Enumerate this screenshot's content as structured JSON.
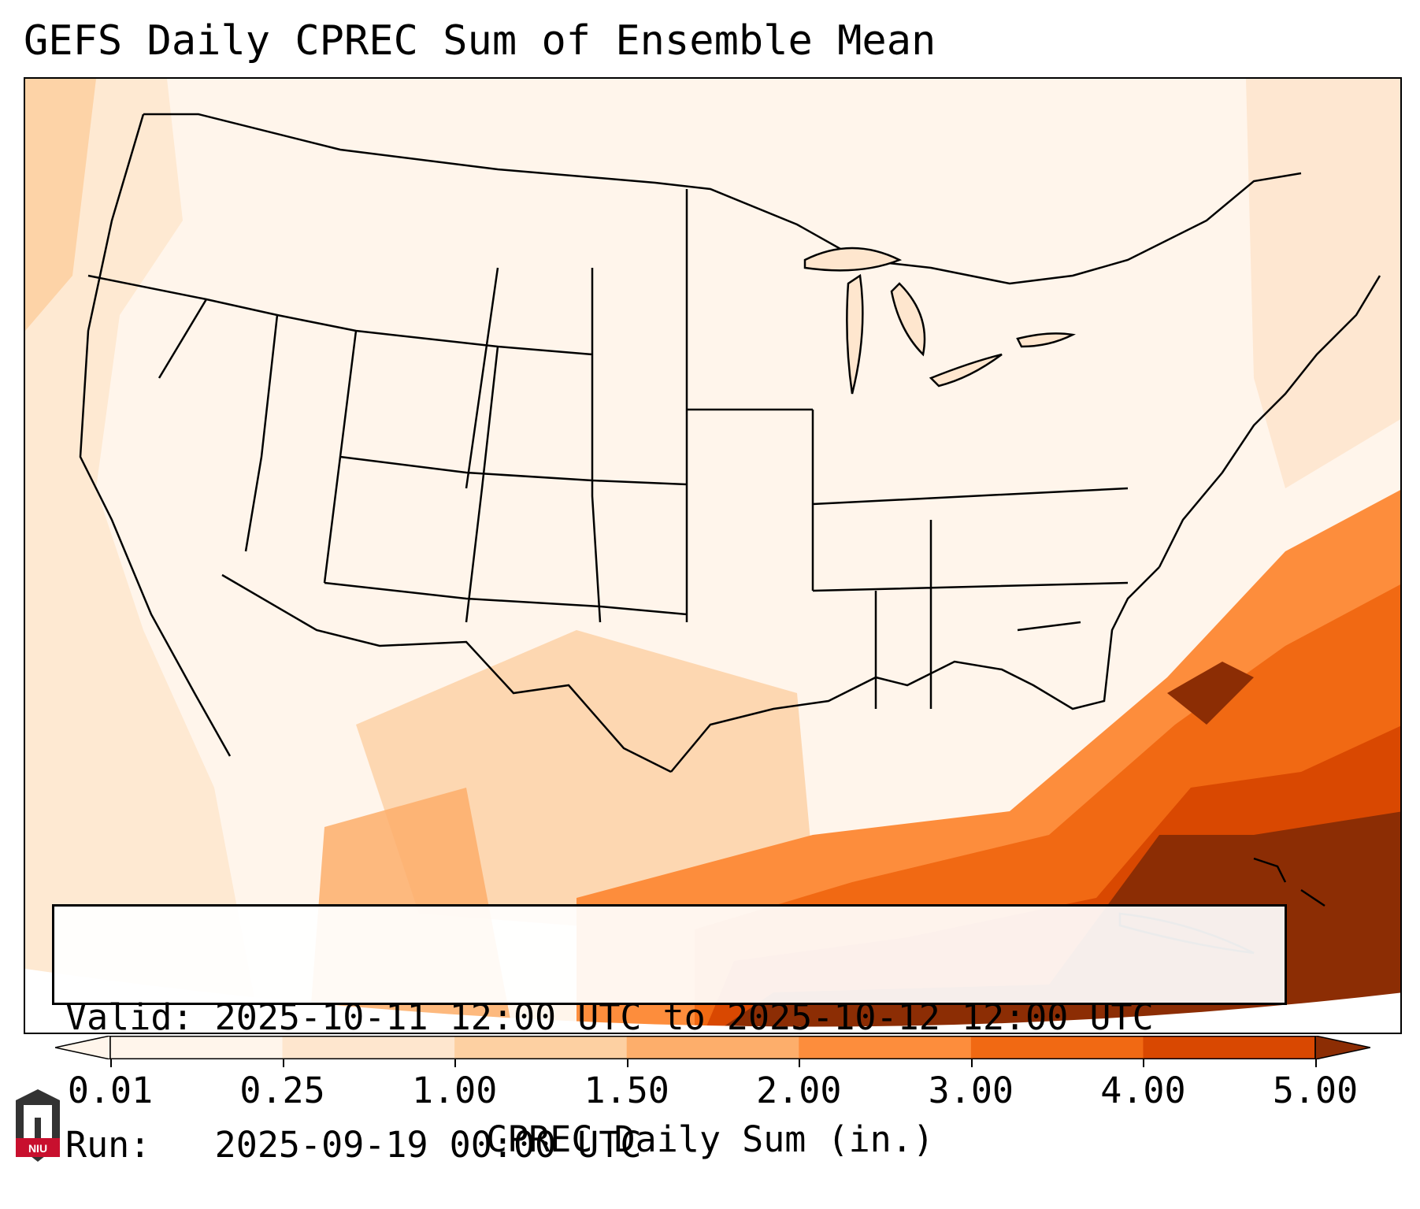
{
  "title": "GEFS Daily CPREC Sum of Ensemble Mean",
  "info": {
    "valid_label": "Valid:",
    "valid_value": "2025-10-11 12:00 UTC to 2025-10-12 12:00 UTC",
    "run_label": "Run:",
    "run_value": "2025-09-19 00:00 UTC"
  },
  "colorbar": {
    "label": "CPREC Daily Sum (in.)",
    "ticks": [
      "0.01",
      "0.25",
      "1.00",
      "1.50",
      "2.00",
      "3.00",
      "4.00",
      "5.00"
    ],
    "colors": [
      "#fff5eb",
      "#fee6ce",
      "#fdd0a2",
      "#fdae6b",
      "#fd8d3c",
      "#f16913",
      "#d94801",
      "#8c2d04"
    ],
    "extend": "both"
  },
  "logo": {
    "text": "NIU",
    "colors": {
      "red": "#c8102e",
      "dark": "#333333"
    }
  },
  "map": {
    "region": "CONUS",
    "highest_precip_area": "Gulf of Mexico / Florida / Atlantic",
    "colors": {
      "lowest": "#fff5eb",
      "low": "#fee6ce",
      "mid_low": "#fdd0a2",
      "mid": "#fdae6b",
      "mid_high": "#fd8d3c",
      "high": "#f16913",
      "very_high": "#d94801",
      "max": "#8c2d04",
      "borders": "#000000"
    }
  }
}
